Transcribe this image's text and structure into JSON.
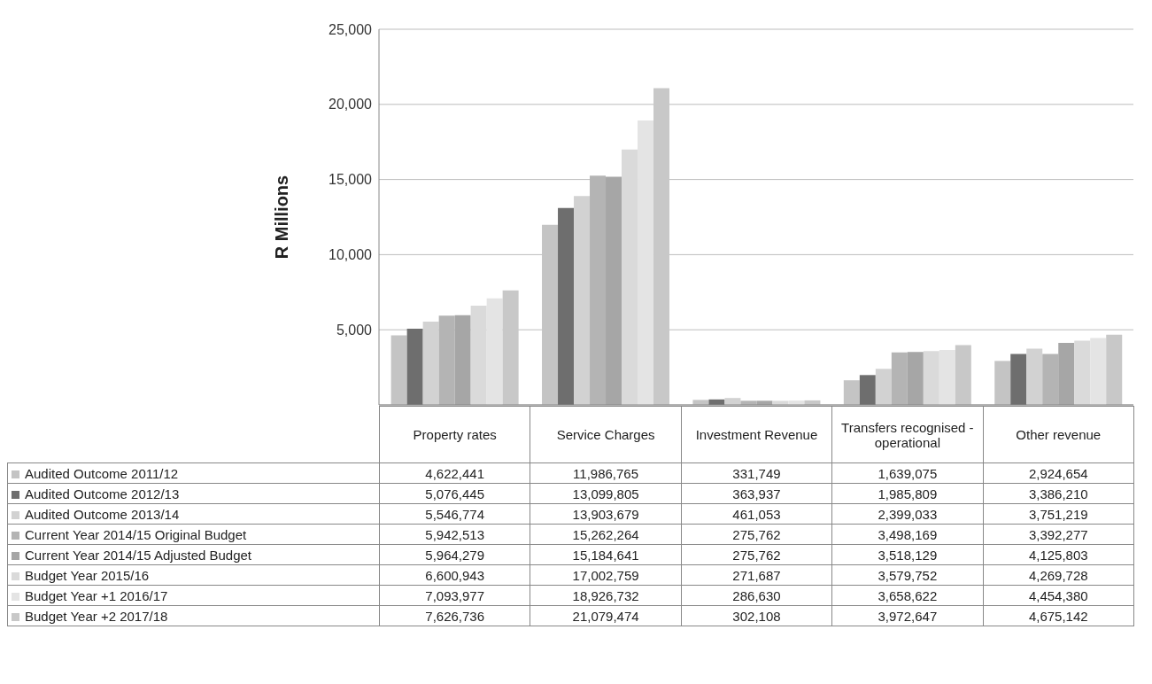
{
  "chart_data": [
    {
      "type": "bar",
      "ylabel": "R Millions",
      "categories": [
        null,
        null,
        null,
        null,
        null
      ],
      "ylim": [
        0,
        25000
      ],
      "yticks": [
        {
          "value": 0,
          "label": null
        },
        {
          "value": 5000,
          "label": "5,000"
        },
        {
          "value": 10000,
          "label": "10,000"
        },
        {
          "value": 15000,
          "label": "15,000"
        },
        {
          "value": 20000,
          "label": "20,000"
        },
        {
          "value": 25000,
          "label": "25,000"
        }
      ],
      "grid": "y",
      "series": [
        {
          "color": "#c4c4c4",
          "values": [
            4622,
            11987,
            332,
            1639,
            2925
          ]
        },
        {
          "color": "#6e6e6e",
          "values": [
            5076,
            13100,
            364,
            1986,
            3386
          ]
        },
        {
          "color": "#d2d2d2",
          "values": [
            5547,
            13904,
            461,
            2399,
            3751
          ]
        },
        {
          "color": "#b4b4b4",
          "values": [
            5943,
            15262,
            276,
            3498,
            3392
          ]
        },
        {
          "color": "#a6a6a6",
          "values": [
            5964,
            15185,
            276,
            3518,
            4126
          ]
        },
        {
          "color": "#dadada",
          "values": [
            6601,
            17003,
            272,
            3580,
            4270
          ]
        },
        {
          "color": "#e4e4e4",
          "values": [
            7094,
            18927,
            287,
            3659,
            4454
          ]
        },
        {
          "color": "#c8c8c8",
          "values": [
            7627,
            21079,
            302,
            3973,
            4675
          ]
        }
      ]
    },
    {
      "type": "other",
      "categories": [
        "Property rates",
        "Service Charges",
        "Investment Revenue",
        "Transfers recognised - operational",
        "Other revenue"
      ],
      "legend": "left",
      "series": [
        {
          "name": "Audited Outcome 2011/12",
          "color": "#c4c4c4",
          "values": [
            4622441,
            11986765,
            331749,
            1639075,
            2924654
          ],
          "value_labels": [
            "4,622,441",
            "11,986,765",
            "331,749",
            "1,639,075",
            "2,924,654"
          ]
        },
        {
          "name": "Audited Outcome 2012/13",
          "color": "#6e6e6e",
          "values": [
            5076445,
            13099805,
            363937,
            1985809,
            3386210
          ],
          "value_labels": [
            "5,076,445",
            "13,099,805",
            "363,937",
            "1,985,809",
            "3,386,210"
          ]
        },
        {
          "name": "Audited Outcome 2013/14",
          "color": "#d2d2d2",
          "values": [
            5546774,
            13903679,
            461053,
            2399033,
            3751219
          ],
          "value_labels": [
            "5,546,774",
            "13,903,679",
            "461,053",
            "2,399,033",
            "3,751,219"
          ]
        },
        {
          "name": "Current Year 2014/15 Original Budget",
          "color": "#b4b4b4",
          "values": [
            5942513,
            15262264,
            275762,
            3498169,
            3392277
          ],
          "value_labels": [
            "5,942,513",
            "15,262,264",
            "275,762",
            "3,498,169",
            "3,392,277"
          ]
        },
        {
          "name": "Current Year 2014/15 Adjusted Budget",
          "color": "#a6a6a6",
          "values": [
            5964279,
            15184641,
            275762,
            3518129,
            4125803
          ],
          "value_labels": [
            "5,964,279",
            "15,184,641",
            "275,762",
            "3,518,129",
            "4,125,803"
          ]
        },
        {
          "name": "Budget Year 2015/16",
          "color": "#dadada",
          "values": [
            6600943,
            17002759,
            271687,
            3579752,
            4269728
          ],
          "value_labels": [
            "6,600,943",
            "17,002,759",
            "271,687",
            "3,579,752",
            "4,269,728"
          ]
        },
        {
          "name": "Budget Year +1 2016/17",
          "color": "#e4e4e4",
          "values": [
            7093977,
            18926732,
            286630,
            3658622,
            4454380
          ],
          "value_labels": [
            "7,093,977",
            "18,926,732",
            "286,630",
            "3,658,622",
            "4,454,380"
          ]
        },
        {
          "name": "Budget Year +2 2017/18",
          "color": "#c8c8c8",
          "values": [
            7626736,
            21079474,
            302108,
            3972647,
            4675142
          ],
          "value_labels": [
            "7,626,736",
            "21,079,474",
            "302,108",
            "3,972,647",
            "4,675,142"
          ]
        }
      ]
    }
  ]
}
